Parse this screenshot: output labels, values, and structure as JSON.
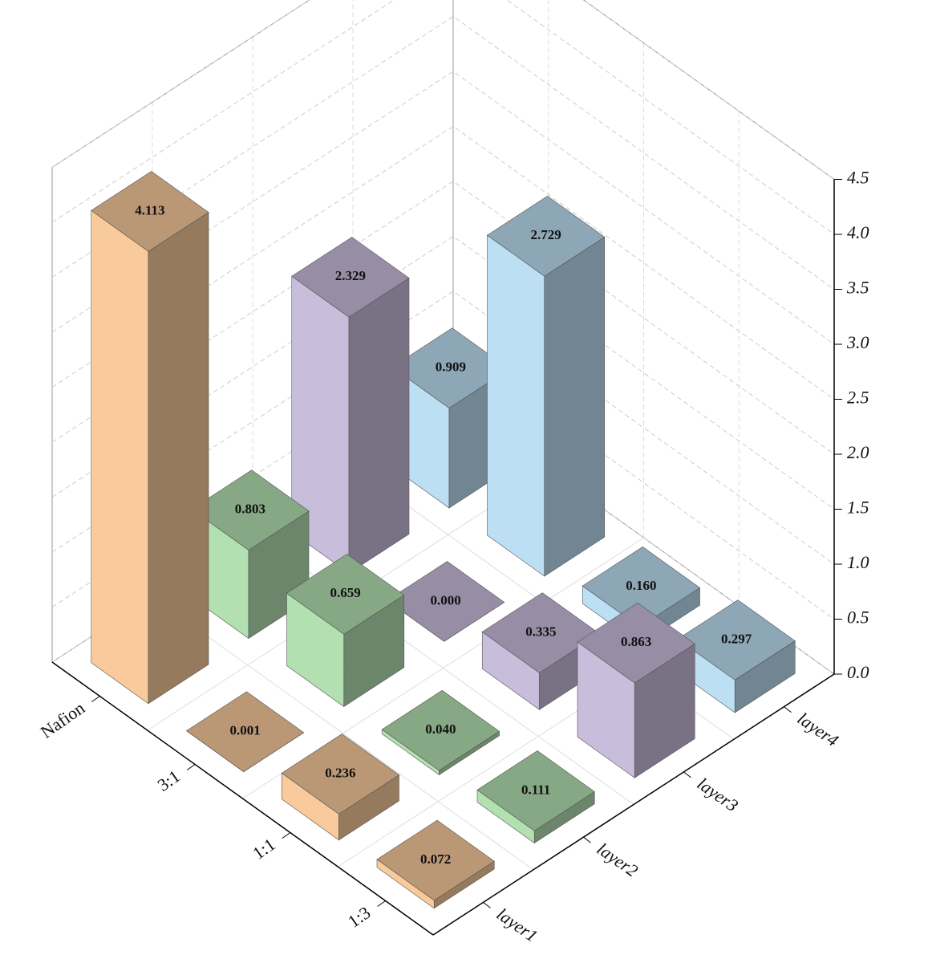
{
  "chart_data": {
    "type": "bar3d",
    "categories": [
      "Nafion",
      "3:1",
      "1:1",
      "1:3"
    ],
    "series": [
      {
        "name": "layer1",
        "color": "#f9cb9c",
        "values": [
          4.113,
          0.001,
          0.236,
          0.072
        ],
        "value_labels": [
          "4.113",
          "0.001",
          "0.236",
          "0.072"
        ]
      },
      {
        "name": "layer2",
        "color": "#b3e0b0",
        "values": [
          0.803,
          0.659,
          0.04,
          0.111
        ],
        "value_labels": [
          "0.803",
          "0.659",
          "0.040",
          "0.111"
        ]
      },
      {
        "name": "layer3",
        "color": "#c9bddc",
        "values": [
          2.329,
          0.0,
          0.335,
          0.863
        ],
        "value_labels": [
          "2.329",
          "0.000",
          "0.335",
          "0.863"
        ]
      },
      {
        "name": "layer4",
        "color": "#bcdff3",
        "values": [
          0.909,
          2.729,
          0.16,
          0.297
        ],
        "value_labels": [
          "0.909",
          "2.729",
          "0.160",
          "0.297"
        ]
      }
    ],
    "ylim": [
      0,
      4.5
    ],
    "yticks": [
      {
        "value": 0,
        "label": "0.0"
      },
      0.5,
      {
        "value": 1,
        "label": "1.0"
      },
      1.5,
      {
        "value": 2,
        "label": "2.0"
      },
      2.5,
      {
        "value": 3,
        "label": "3.0"
      },
      3.5,
      {
        "value": 4,
        "label": "4.0"
      },
      4.5
    ],
    "grid": true
  }
}
